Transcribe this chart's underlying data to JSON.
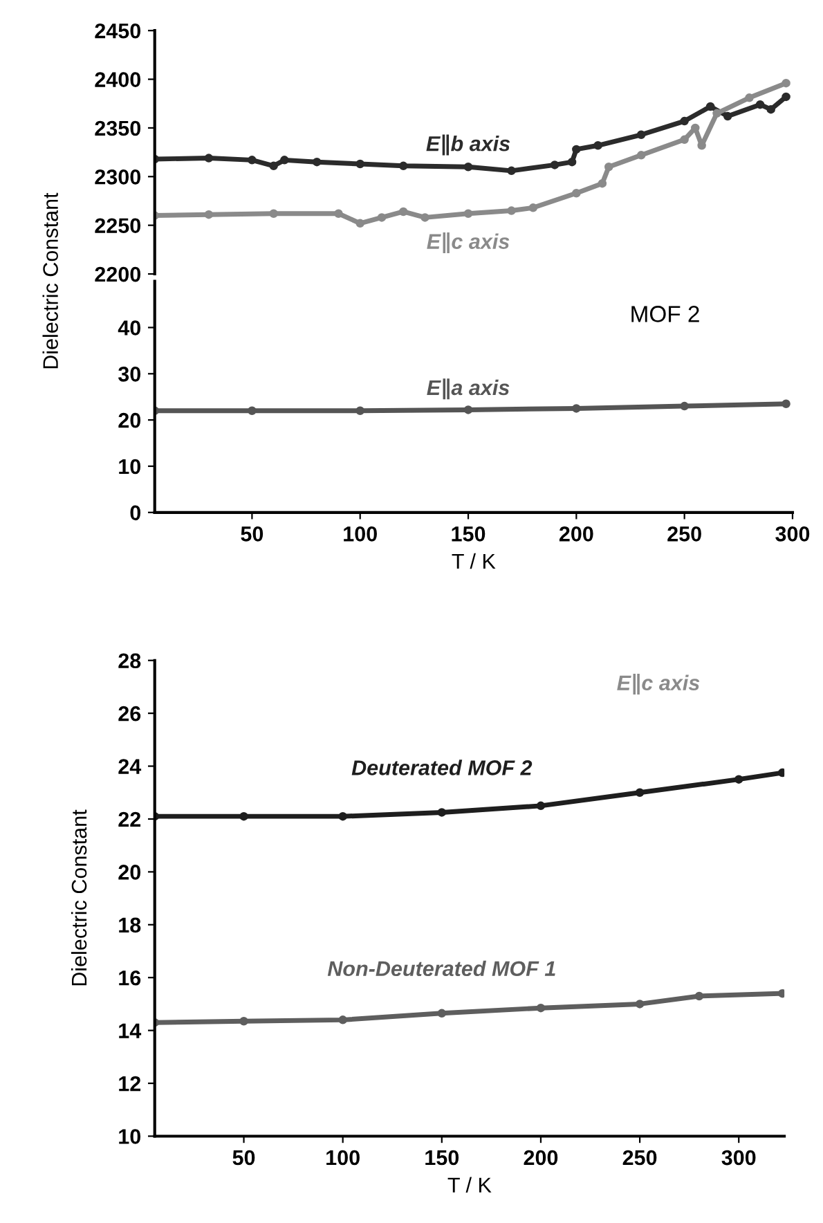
{
  "chart_data": [
    {
      "type": "line",
      "xlim": [
        5,
        300
      ],
      "ylim": [
        2200,
        2450
      ],
      "yticks": [
        2200,
        2250,
        2300,
        2350,
        2400,
        2450
      ],
      "tick_labels": "y",
      "marker": "circle",
      "grid": false,
      "series": [
        {
          "name": "E∥b axis",
          "color": "#2b2b2b",
          "x": [
            5,
            30,
            50,
            60,
            65,
            80,
            100,
            120,
            150,
            170,
            190,
            198,
            200,
            210,
            230,
            250,
            262,
            270,
            285,
            290,
            297
          ],
          "values": [
            2318,
            2319,
            2317,
            2311,
            2317,
            2315,
            2313,
            2311,
            2310,
            2306,
            2312,
            2315,
            2328,
            2332,
            2343,
            2357,
            2372,
            2362,
            2374,
            2369,
            2382
          ]
        },
        {
          "name": "E∥c axis",
          "color": "#8a8a8a",
          "x": [
            5,
            30,
            60,
            90,
            100,
            110,
            120,
            130,
            150,
            170,
            180,
            200,
            212,
            215,
            230,
            250,
            255,
            258,
            265,
            280,
            297
          ],
          "values": [
            2260,
            2261,
            2262,
            2262,
            2252,
            2258,
            2264,
            2258,
            2262,
            2265,
            2268,
            2283,
            2293,
            2310,
            2322,
            2338,
            2350,
            2332,
            2365,
            2381,
            2396
          ]
        }
      ]
    },
    {
      "type": "line",
      "xlim": [
        5,
        300
      ],
      "xticks": [
        50,
        100,
        150,
        200,
        250,
        300
      ],
      "ylim": [
        0,
        50
      ],
      "yticks": [
        0,
        10,
        20,
        30,
        40
      ],
      "xlabel": "T / K",
      "ylabel": "Dielectric Constant",
      "marker": "circle",
      "grid": false,
      "annotations": [
        "MOF 2"
      ],
      "series": [
        {
          "name": "E∥a axis",
          "color": "#555555",
          "x": [
            5,
            50,
            100,
            150,
            200,
            250,
            297
          ],
          "values": [
            22,
            22,
            22,
            22.2,
            22.5,
            23,
            23.5
          ]
        }
      ]
    },
    {
      "type": "line",
      "xlim": [
        5,
        323
      ],
      "xticks": [
        50,
        100,
        150,
        200,
        250,
        300
      ],
      "ylim": [
        10,
        28
      ],
      "yticks": [
        10,
        12,
        14,
        16,
        18,
        20,
        22,
        24,
        26,
        28
      ],
      "xlabel": "T / K",
      "ylabel": "Dielectric Constant",
      "marker": "circle",
      "grid": false,
      "annotations": [
        "E∥c axis"
      ],
      "series": [
        {
          "name": "Deuterated MOF 2",
          "color": "#1e1e1e",
          "x": [
            5,
            50,
            100,
            150,
            200,
            250,
            300,
            322
          ],
          "values": [
            22.1,
            22.1,
            22.1,
            22.25,
            22.5,
            23.0,
            23.5,
            23.75
          ]
        },
        {
          "name": "Non-Deuterated MOF 1",
          "color": "#5e5e5e",
          "x": [
            5,
            50,
            100,
            150,
            200,
            250,
            280,
            322
          ],
          "values": [
            14.3,
            14.35,
            14.4,
            14.65,
            14.85,
            15.0,
            15.3,
            15.4
          ]
        }
      ]
    }
  ]
}
